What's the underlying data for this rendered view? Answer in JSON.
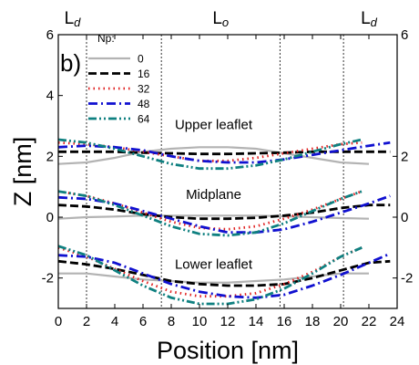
{
  "chart_data": {
    "type": "line",
    "panel_label": "b)",
    "xlabel": "Position [nm]",
    "ylabel": "Z [nm]",
    "xlim": [
      0,
      24
    ],
    "ylim": [
      -3,
      6
    ],
    "xticks": [
      0,
      2,
      4,
      6,
      8,
      10,
      12,
      14,
      16,
      18,
      20,
      22,
      24
    ],
    "yticks_left": [
      -2,
      0,
      2,
      4,
      6
    ],
    "yticks_right": [
      -2,
      0,
      2,
      6
    ],
    "grid": false,
    "legend": {
      "title": "Np:",
      "placement": "top-left"
    },
    "phase_boundaries": [
      2,
      7.3,
      15.7,
      20.2
    ],
    "phase_labels": [
      {
        "x": 1,
        "main": "L",
        "sub": "d"
      },
      {
        "x": 11.5,
        "main": "L",
        "sub": "o"
      },
      {
        "x": 22,
        "main": "L",
        "sub": "d"
      }
    ],
    "annotations": [
      {
        "text": "Upper leaflet",
        "x": 11,
        "y": 2.9
      },
      {
        "text": "Midplane",
        "x": 11,
        "y": 0.6
      },
      {
        "text": "Lower leaflet",
        "x": 11,
        "y": -1.7
      }
    ],
    "series": [
      {
        "name": "0",
        "color": "#b3b3b3",
        "dash": "solid",
        "layers": [
          {
            "x": [
              0,
              2,
              4,
              6,
              8,
              10,
              12,
              14,
              16,
              18,
              20,
              22
            ],
            "y": [
              1.75,
              1.8,
              1.95,
              2.15,
              2.25,
              2.3,
              2.3,
              2.25,
              2.1,
              1.95,
              1.8,
              1.75
            ]
          },
          {
            "x": [
              0,
              2,
              4,
              6,
              8,
              10,
              12,
              14,
              16,
              18,
              20,
              22
            ],
            "y": [
              -0.05,
              0,
              0.02,
              0.05,
              0.05,
              0.05,
              0.05,
              0.05,
              0.03,
              0,
              -0.03,
              -0.05
            ]
          },
          {
            "x": [
              0,
              2,
              4,
              6,
              8,
              10,
              12,
              14,
              16,
              18,
              20,
              22
            ],
            "y": [
              -1.85,
              -1.85,
              -1.95,
              -2.05,
              -2.1,
              -2.15,
              -2.15,
              -2.1,
              -2.05,
              -1.95,
              -1.85,
              -1.85
            ]
          }
        ]
      },
      {
        "name": "16",
        "color": "#000000",
        "dash": "dash",
        "layers": [
          {
            "x": [
              0,
              2,
              4,
              6,
              8,
              10,
              12,
              14,
              16,
              18,
              20,
              22,
              23.5
            ],
            "y": [
              2.15,
              2.15,
              2.15,
              2.12,
              2.1,
              2.08,
              2.08,
              2.1,
              2.12,
              2.15,
              2.15,
              2.15,
              2.15
            ]
          },
          {
            "x": [
              0,
              2,
              4,
              6,
              8,
              10,
              12,
              14,
              16,
              18,
              20,
              22,
              23.5
            ],
            "y": [
              0.4,
              0.35,
              0.25,
              0.1,
              0,
              -0.05,
              -0.05,
              -0.02,
              0.05,
              0.15,
              0.3,
              0.4,
              0.4
            ]
          },
          {
            "x": [
              0,
              2,
              4,
              6,
              8,
              10,
              12,
              14,
              16,
              18,
              20,
              22,
              23.5
            ],
            "y": [
              -1.45,
              -1.55,
              -1.7,
              -1.9,
              -2.1,
              -2.2,
              -2.25,
              -2.25,
              -2.2,
              -2,
              -1.75,
              -1.5,
              -1.45
            ]
          }
        ]
      },
      {
        "name": "32",
        "color": "#e02020",
        "dash": "dot",
        "layers": [
          {
            "x": [
              0,
              2,
              4,
              6,
              8,
              10,
              12,
              14,
              16,
              18,
              20,
              21.5
            ],
            "y": [
              2.45,
              2.4,
              2.3,
              2.15,
              2,
              1.85,
              1.85,
              1.95,
              2.1,
              2.25,
              2.4,
              2.45
            ]
          },
          {
            "x": [
              0,
              2,
              4,
              6,
              8,
              10,
              12,
              14,
              16,
              18,
              20,
              21.5
            ],
            "y": [
              0.85,
              0.7,
              0.45,
              0.15,
              -0.15,
              -0.35,
              -0.4,
              -0.3,
              -0.05,
              0.25,
              0.6,
              0.85
            ]
          },
          {
            "x": [
              0,
              2,
              4,
              6,
              8,
              10,
              12,
              14,
              16,
              18,
              20,
              21.5
            ],
            "y": [
              -1,
              -1.3,
              -1.7,
              -2.1,
              -2.45,
              -2.6,
              -2.6,
              -2.5,
              -2.2,
              -1.8,
              -1.3,
              -1
            ]
          }
        ]
      },
      {
        "name": "48",
        "color": "#1010d0",
        "dash": "dashdot",
        "layers": [
          {
            "x": [
              0,
              2,
              4,
              6,
              8,
              10,
              12,
              14,
              16,
              18,
              20,
              22,
              23.5
            ],
            "y": [
              2.3,
              2.35,
              2.3,
              2.2,
              2,
              1.85,
              1.8,
              1.8,
              1.9,
              2.05,
              2.2,
              2.35,
              2.45
            ]
          },
          {
            "x": [
              0,
              2,
              4,
              6,
              8,
              10,
              12,
              14,
              16,
              18,
              20,
              22,
              23.5
            ],
            "y": [
              0.65,
              0.6,
              0.45,
              0.2,
              -0.05,
              -0.3,
              -0.5,
              -0.5,
              -0.4,
              -0.15,
              0.15,
              0.45,
              0.7
            ]
          },
          {
            "x": [
              0,
              2,
              4,
              6,
              8,
              10,
              12,
              14,
              16,
              18,
              20,
              22,
              23.5
            ],
            "y": [
              -1.25,
              -1.3,
              -1.5,
              -1.85,
              -2.2,
              -2.45,
              -2.6,
              -2.65,
              -2.55,
              -2.25,
              -1.9,
              -1.5,
              -1.2
            ]
          }
        ]
      },
      {
        "name": "64",
        "color": "#0f8080",
        "dash": "dashdotdot",
        "layers": [
          {
            "x": [
              0,
              2,
              4,
              6,
              8,
              10,
              12,
              14,
              16,
              18,
              20,
              21.5
            ],
            "y": [
              2.55,
              2.45,
              2.25,
              2,
              1.75,
              1.6,
              1.6,
              1.7,
              1.9,
              2.15,
              2.4,
              2.55
            ]
          },
          {
            "x": [
              0,
              2,
              4,
              6,
              8,
              10,
              12,
              14,
              16,
              18,
              20,
              21.5
            ],
            "y": [
              0.85,
              0.7,
              0.4,
              0.05,
              -0.3,
              -0.55,
              -0.6,
              -0.5,
              -0.2,
              0.2,
              0.6,
              0.85
            ]
          },
          {
            "x": [
              0,
              2,
              4,
              6,
              8,
              10,
              12,
              14,
              16,
              18,
              20,
              21.5
            ],
            "y": [
              -0.95,
              -1.25,
              -1.75,
              -2.25,
              -2.65,
              -2.85,
              -2.85,
              -2.7,
              -2.35,
              -1.85,
              -1.3,
              -1
            ]
          }
        ]
      }
    ]
  }
}
